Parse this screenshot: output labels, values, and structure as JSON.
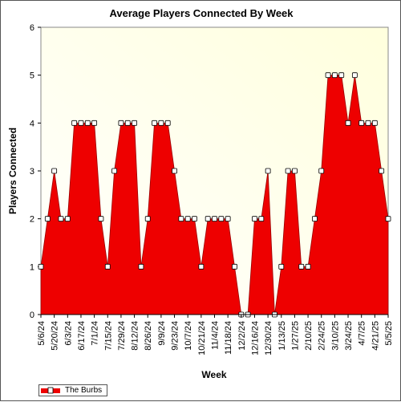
{
  "chart_data": {
    "type": "area",
    "title": "Average Players Connected By Week",
    "xlabel": "Week",
    "ylabel": "Players Connected",
    "ylim": [
      0,
      6
    ],
    "yticks": [
      0,
      1,
      2,
      3,
      4,
      5,
      6
    ],
    "x_tick_labels": [
      "5/6/24",
      "5/20/24",
      "6/3/24",
      "6/17/24",
      "7/1/24",
      "7/15/24",
      "7/29/24",
      "8/12/24",
      "8/26/24",
      "9/9/24",
      "9/23/24",
      "10/7/24",
      "10/21/24",
      "11/4/24",
      "11/18/24",
      "12/2/24",
      "12/16/24",
      "12/30/24",
      "1/13/25",
      "1/27/25",
      "2/10/25",
      "2/24/25",
      "3/10/25",
      "3/24/25",
      "4/7/25",
      "4/21/25",
      "5/5/25"
    ],
    "series": [
      {
        "name": "The Burbs",
        "color": "#ee0000",
        "x": [
          "5/6/24",
          "5/13/24",
          "5/20/24",
          "5/27/24",
          "6/3/24",
          "6/10/24",
          "6/17/24",
          "6/24/24",
          "7/1/24",
          "7/8/24",
          "7/15/24",
          "7/22/24",
          "7/29/24",
          "8/5/24",
          "8/12/24",
          "8/19/24",
          "8/26/24",
          "9/2/24",
          "9/9/24",
          "9/16/24",
          "9/23/24",
          "9/30/24",
          "10/7/24",
          "10/14/24",
          "10/21/24",
          "10/28/24",
          "11/4/24",
          "11/11/24",
          "11/18/24",
          "11/25/24",
          "12/2/24",
          "12/9/24",
          "12/16/24",
          "12/23/24",
          "12/30/24",
          "1/6/25",
          "1/13/25",
          "1/20/25",
          "1/27/25",
          "2/3/25",
          "2/10/25",
          "2/17/25",
          "2/24/25",
          "3/3/25",
          "3/10/25",
          "3/17/25",
          "3/24/25",
          "3/31/25",
          "4/7/25",
          "4/14/25",
          "4/21/25",
          "4/28/25",
          "5/5/25"
        ],
        "values": [
          1,
          2,
          3,
          2,
          2,
          4,
          4,
          4,
          4,
          2,
          1,
          3,
          4,
          4,
          4,
          1,
          2,
          4,
          4,
          4,
          3,
          2,
          2,
          2,
          1,
          2,
          2,
          2,
          2,
          1,
          0,
          0,
          2,
          2,
          3,
          0,
          1,
          3,
          3,
          1,
          1,
          2,
          3,
          5,
          5,
          5,
          4,
          5,
          4,
          4,
          4,
          3,
          2
        ]
      }
    ],
    "grid": false,
    "legend_position": "bottom-left",
    "plot_background": [
      "#ffffdd",
      "#ffffff"
    ]
  }
}
